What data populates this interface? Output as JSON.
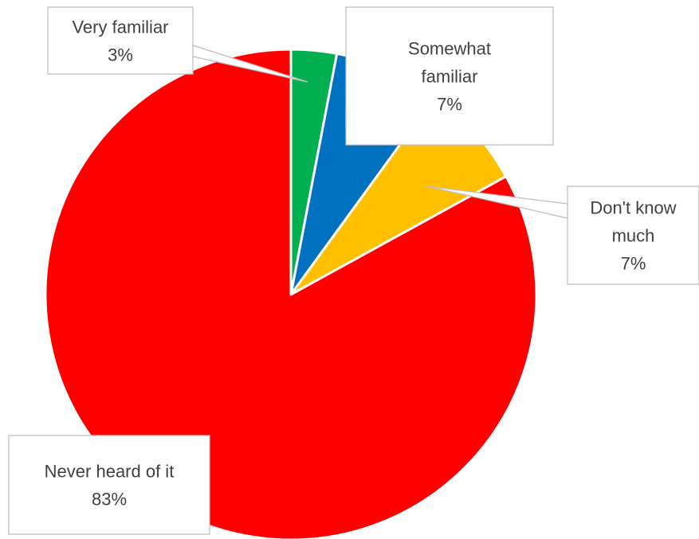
{
  "chart_data": {
    "type": "pie",
    "title": "",
    "slices": [
      {
        "label": "Very familiar",
        "value": 3,
        "value_label": "3%",
        "color": "#00B050"
      },
      {
        "label": "Somewhat familiar",
        "value": 7,
        "value_label": "7%",
        "color": "#0070C0"
      },
      {
        "label": "Don't know much",
        "value": 7,
        "value_label": "7%",
        "color": "#FFC000"
      },
      {
        "label": "Never heard of it",
        "value": 83,
        "value_label": "83%",
        "color": "#FF0000"
      }
    ],
    "start_angle": "12 o'clock",
    "direction": "clockwise",
    "legend": "none",
    "data_labels": "callouts"
  }
}
